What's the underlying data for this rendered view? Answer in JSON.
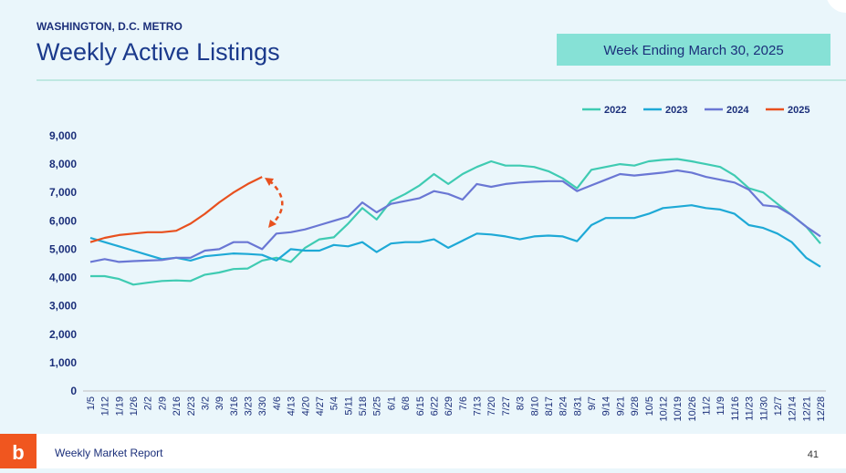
{
  "header": {
    "region": "WASHINGTON, D.C. METRO",
    "title": "Weekly Active Listings",
    "badge": "Week Ending March 30, 2025"
  },
  "footer": {
    "report": "Weekly Market Report",
    "page": "41"
  },
  "chart_data": {
    "type": "line",
    "categories": [
      "1/5",
      "1/12",
      "1/19",
      "1/26",
      "2/2",
      "2/9",
      "2/16",
      "2/23",
      "3/2",
      "3/9",
      "3/16",
      "3/23",
      "3/30",
      "4/6",
      "4/13",
      "4/20",
      "4/27",
      "5/4",
      "5/11",
      "5/18",
      "5/25",
      "6/1",
      "6/8",
      "6/15",
      "6/22",
      "6/29",
      "7/6",
      "7/13",
      "7/20",
      "7/27",
      "8/3",
      "8/10",
      "8/17",
      "8/24",
      "8/31",
      "9/7",
      "9/14",
      "9/21",
      "9/28",
      "10/5",
      "10/12",
      "10/19",
      "10/26",
      "11/2",
      "11/9",
      "11/16",
      "11/23",
      "11/30",
      "12/7",
      "12/14",
      "12/21",
      "12/28"
    ],
    "series": [
      {
        "name": "2022",
        "color": "#3fcbb2",
        "values": [
          4050,
          4050,
          3950,
          3750,
          3820,
          3880,
          3900,
          3880,
          4100,
          4180,
          4300,
          4320,
          4600,
          4700,
          4550,
          5050,
          5350,
          5420,
          5900,
          6450,
          6050,
          6700,
          6950,
          7250,
          7650,
          7300,
          7650,
          7900,
          8100,
          7950,
          7950,
          7900,
          7750,
          7500,
          7150,
          7800,
          7900,
          8000,
          7950,
          8100,
          8150,
          8180,
          8100,
          8000,
          7900,
          7600,
          7150,
          7000,
          6600,
          6200,
          5800,
          5200
        ]
      },
      {
        "name": "2023",
        "color": "#1ea9d6",
        "values": [
          5400,
          5250,
          5100,
          4950,
          4800,
          4650,
          4700,
          4600,
          4750,
          4800,
          4850,
          4830,
          4800,
          4600,
          5000,
          4950,
          4950,
          5150,
          5100,
          5250,
          4900,
          5200,
          5250,
          5250,
          5350,
          5050,
          5300,
          5550,
          5520,
          5450,
          5350,
          5450,
          5480,
          5450,
          5280,
          5850,
          6100,
          6100,
          6100,
          6250,
          6450,
          6500,
          6550,
          6450,
          6400,
          6250,
          5850,
          5750,
          5550,
          5250,
          4700,
          4380
        ]
      },
      {
        "name": "2024",
        "color": "#6a77d4",
        "values": [
          4550,
          4650,
          4550,
          4580,
          4600,
          4620,
          4700,
          4700,
          4950,
          5000,
          5250,
          5250,
          5000,
          5550,
          5600,
          5700,
          5850,
          6000,
          6150,
          6650,
          6300,
          6600,
          6700,
          6800,
          7050,
          6950,
          6750,
          7300,
          7200,
          7300,
          7350,
          7380,
          7400,
          7400,
          7050,
          7250,
          7450,
          7650,
          7600,
          7650,
          7700,
          7780,
          7700,
          7550,
          7450,
          7350,
          7100,
          6550,
          6500,
          6200,
          5800,
          5450
        ]
      },
      {
        "name": "2025",
        "color": "#e8501e",
        "values": [
          5250,
          5400,
          5500,
          5550,
          5600,
          5600,
          5650,
          5900,
          6250,
          6650,
          7000,
          7300,
          7550,
          null,
          null,
          null,
          null,
          null,
          null,
          null,
          null,
          null,
          null,
          null,
          null,
          null,
          null,
          null,
          null,
          null,
          null,
          null,
          null,
          null,
          null,
          null,
          null,
          null,
          null,
          null,
          null,
          null,
          null,
          null,
          null,
          null,
          null,
          null,
          null,
          null,
          null,
          null
        ]
      }
    ],
    "ylim": [
      0,
      9000
    ],
    "yticks": [
      0,
      {
        "value": 1000,
        "label": "1,000"
      },
      {
        "value": 2000,
        "label": "2,000"
      },
      {
        "value": 3000,
        "label": "3,000"
      },
      {
        "value": 4000,
        "label": "4,000"
      },
      {
        "value": 5000,
        "label": "5,000"
      },
      {
        "value": 6000,
        "label": "6,000"
      },
      {
        "value": 7000,
        "label": "7,000"
      },
      {
        "value": 8000,
        "label": "8,000"
      },
      {
        "value": 9000,
        "label": "9,000"
      }
    ],
    "grid": false,
    "legend": "top-right"
  }
}
